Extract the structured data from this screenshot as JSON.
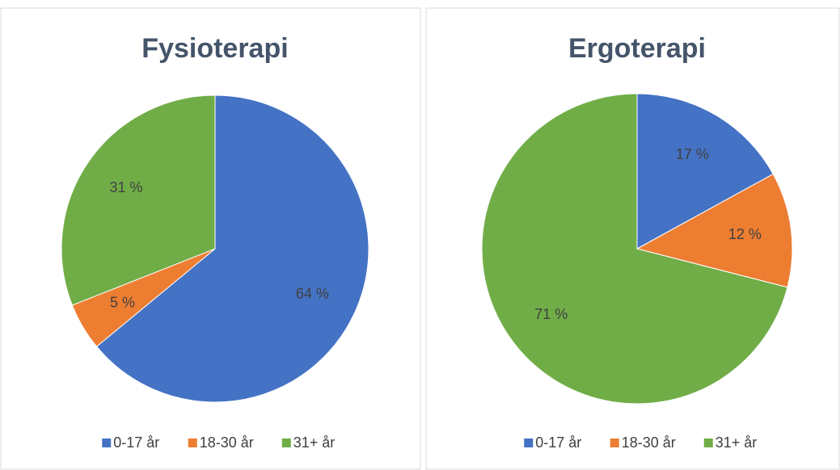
{
  "chart_data": [
    {
      "type": "pie",
      "title": "Fysioterapi",
      "categories": [
        "0-17 år",
        "18-30 år",
        "31+ år"
      ],
      "values": [
        64,
        5,
        31
      ],
      "value_labels": [
        "64 %",
        "5 %",
        "31 %"
      ],
      "colors": [
        "#4472c4",
        "#ed7d31",
        "#70ad47"
      ]
    },
    {
      "type": "pie",
      "title": "Ergoterapi",
      "categories": [
        "0-17 år",
        "18-30 år",
        "31+ år"
      ],
      "values": [
        17,
        12,
        71
      ],
      "value_labels": [
        "17 %",
        "12 %",
        "71 %"
      ],
      "colors": [
        "#4472c4",
        "#ed7d31",
        "#70ad47"
      ]
    }
  ]
}
